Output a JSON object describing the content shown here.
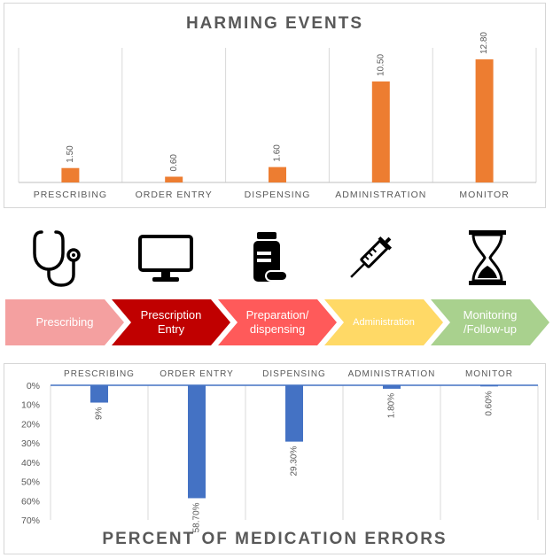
{
  "top_chart": {
    "title": "HARMING EVENTS"
  },
  "bottom_chart": {
    "title": "PERCENT OF MEDICATION ERRORS"
  },
  "process_steps": [
    {
      "label": "Prescribing",
      "icon": "stethoscope-icon",
      "color": "#f4a0a0"
    },
    {
      "label": "Prescription\nEntry",
      "icon": "monitor-icon",
      "color": "#c00000"
    },
    {
      "label": "Preparation/\ndispensing",
      "icon": "pill-bottle-icon",
      "color": "#ff5a5a"
    },
    {
      "label": "Administration",
      "icon": "syringe-icon",
      "color": "#ffd966"
    },
    {
      "label": "Monitoring\n/Follow-up",
      "icon": "hourglass-icon",
      "color": "#a9d18e"
    }
  ],
  "colors": {
    "harming_bar": "#ed7d31",
    "error_bar": "#4472c4",
    "axis_text": "#595959"
  },
  "chart_data": [
    {
      "type": "bar",
      "title": "HARMING EVENTS",
      "categories": [
        "PRESCRIBING",
        "ORDER ENTRY",
        "DISPENSING",
        "ADMINISTRATION",
        "MONITOR"
      ],
      "values": [
        1.5,
        0.6,
        1.6,
        10.5,
        12.8
      ],
      "value_labels": [
        "1.50",
        "0.60",
        "1.60",
        "10.50",
        "12.80"
      ],
      "ylim": [
        0,
        14
      ],
      "grid": false,
      "xlabel": "",
      "ylabel": ""
    },
    {
      "type": "bar",
      "title": "PERCENT OF MEDICATION ERRORS",
      "categories": [
        "PRESCRIBING",
        "ORDER ENTRY",
        "DISPENSING",
        "ADMINISTRATION",
        "MONITOR"
      ],
      "values": [
        9,
        58.7,
        29.3,
        1.8,
        0.6
      ],
      "value_labels": [
        "9%",
        "58.70%",
        "29.30%",
        "1.80%",
        "0.60%"
      ],
      "yticks": [
        "0%",
        "10%",
        "20%",
        "30%",
        "40%",
        "50%",
        "60%",
        "70%"
      ],
      "ylim": [
        0,
        70
      ],
      "y_inverted": true,
      "grid": false,
      "xlabel": "",
      "ylabel": ""
    }
  ]
}
